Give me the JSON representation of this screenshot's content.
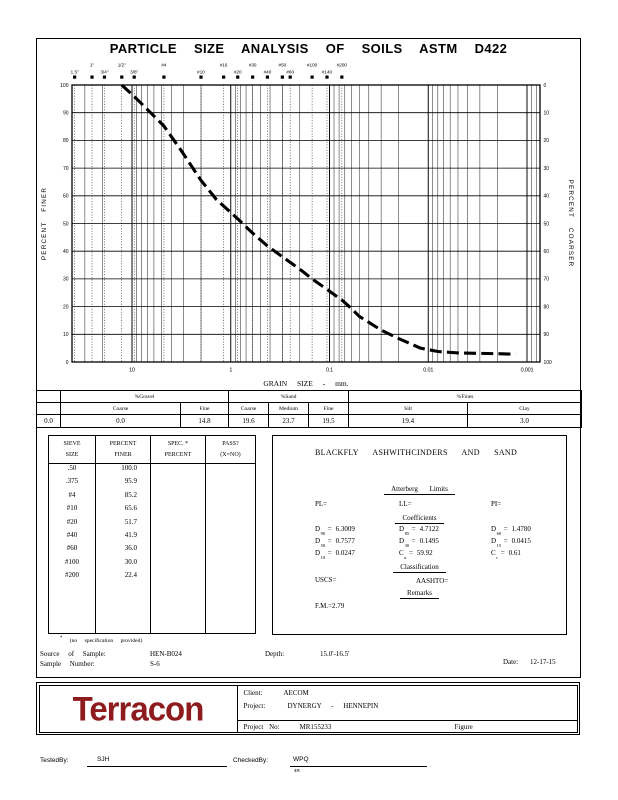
{
  "title": "PARTICLE SIZE ANALYSIS OF SOILS ASTM D422",
  "chart_data": {
    "type": "line",
    "xlabel": "GRAIN SIZE - mm.",
    "ylabel_left": "PERCENT FINER",
    "ylabel_right": "PERCENT COARSER",
    "x_scale": "log",
    "grid": true,
    "curve_style": "dashed",
    "ylim": [
      0,
      100
    ],
    "x_decades": [
      10,
      1,
      0.1,
      0.01,
      0.001
    ],
    "x_decade_labels": [
      "10",
      "1",
      "0.1",
      "0.01",
      "0.001"
    ],
    "x_range_mm": [
      40.5,
      0.00074
    ],
    "y_tick_labels": [
      "0",
      "10",
      "20",
      "30",
      "40",
      "50",
      "60",
      "70",
      "80",
      "90",
      "100"
    ],
    "sieve_markers": [
      {
        "label": "1.5\"",
        "mm": 38.1
      },
      {
        "label": "1\"",
        "mm": 25.4
      },
      {
        "label": "3/4\"",
        "mm": 19.0
      },
      {
        "label": "1/2\"",
        "mm": 12.7
      },
      {
        "label": "3/8\"",
        "mm": 9.5
      },
      {
        "label": "#4",
        "mm": 4.75
      },
      {
        "label": "#10",
        "mm": 2.0
      },
      {
        "label": "#16",
        "mm": 1.18
      },
      {
        "label": "#20",
        "mm": 0.85
      },
      {
        "label": "#30",
        "mm": 0.6
      },
      {
        "label": "#40",
        "mm": 0.425
      },
      {
        "label": "#50",
        "mm": 0.3
      },
      {
        "label": "#60",
        "mm": 0.25
      },
      {
        "label": "#100",
        "mm": 0.15
      },
      {
        "label": "#140",
        "mm": 0.106
      },
      {
        "label": "#200",
        "mm": 0.075
      }
    ],
    "curve_points_mm_pctfiner": [
      [
        12.7,
        100.0
      ],
      [
        9.5,
        95.9
      ],
      [
        6.7,
        90.5
      ],
      [
        4.75,
        85.2
      ],
      [
        3.2,
        76.5
      ],
      [
        2.0,
        65.6
      ],
      [
        1.4,
        58.7
      ],
      [
        0.85,
        51.7
      ],
      [
        0.6,
        46.5
      ],
      [
        0.425,
        41.9
      ],
      [
        0.32,
        38.7
      ],
      [
        0.25,
        36.0
      ],
      [
        0.19,
        32.9
      ],
      [
        0.15,
        30.0
      ],
      [
        0.105,
        26.1
      ],
      [
        0.075,
        22.4
      ],
      [
        0.06,
        19.3
      ],
      [
        0.05,
        16.5
      ],
      [
        0.03,
        11.5
      ],
      [
        0.02,
        8.5
      ],
      [
        0.012,
        5.0
      ],
      [
        0.008,
        3.8
      ],
      [
        0.005,
        3.3
      ],
      [
        0.002,
        3.0
      ],
      [
        0.0013,
        2.8
      ]
    ]
  },
  "fractions": {
    "col0_value": "0.0",
    "groups": [
      {
        "label": "%Gravel",
        "cols": [
          {
            "h": "Coarse",
            "v": "0.0"
          },
          {
            "h": "Fine",
            "v": "14.8"
          }
        ]
      },
      {
        "label": "%Sand",
        "cols": [
          {
            "h": "Coarse",
            "v": "19.6"
          },
          {
            "h": "Medium",
            "v": "23.7"
          },
          {
            "h": "Fine",
            "v": "19.5"
          }
        ]
      },
      {
        "label": "%Fines",
        "cols": [
          {
            "h": "Silt",
            "v": "19.4"
          },
          {
            "h": "Clay",
            "v": "3.0"
          }
        ]
      }
    ]
  },
  "sieve_table": {
    "col_headers": [
      [
        "SIEVE",
        "SIZE"
      ],
      [
        "PERCENT",
        "FINER"
      ],
      [
        "SPEC.  *",
        "PERCENT"
      ],
      [
        "PASS?",
        "(X=NO)"
      ]
    ],
    "rows": [
      [
        ".50",
        "100.0"
      ],
      [
        ".375",
        "95.9"
      ],
      [
        "#4",
        "85.2"
      ],
      [
        "#10",
        "65.6"
      ],
      [
        "#20",
        "51.7"
      ],
      [
        "#40",
        "41.9"
      ],
      [
        "#60",
        "36.0"
      ],
      [
        "#100",
        "30.0"
      ],
      [
        "#200",
        "22.4"
      ]
    ],
    "footnote_star": "*",
    "footnote": "(no specification provided)"
  },
  "summary": {
    "description": "BLACKFLY ASHWITHCINDERS AND SAND",
    "atterberg_heading": "Atterberg Limits",
    "pl_label": "PL=",
    "ll_label": "LL=",
    "pi_label": "PI=",
    "coefficients_heading": "Coefficients",
    "eq": "=",
    "coefficients": [
      {
        "base": "D",
        "sub": "90",
        "value": "6.3009"
      },
      {
        "base": "D",
        "sub": "85",
        "value": "4.7122"
      },
      {
        "base": "D",
        "sub": "60",
        "value": "1.4780"
      },
      {
        "base": "D",
        "sub": "50",
        "value": "0.7577"
      },
      {
        "base": "D",
        "sub": "30",
        "value": "0.1495"
      },
      {
        "base": "D",
        "sub": "15",
        "value": "0.0415"
      },
      {
        "base": "D",
        "sub": "10",
        "value": "0.0247"
      },
      {
        "base": "C",
        "sub": "u",
        "value": "59.92"
      },
      {
        "base": "C",
        "sub": "c",
        "value": "0.61"
      }
    ],
    "classification_heading": "Classification",
    "uscs_label": "USCS=",
    "aashto_label": "AASHTO=",
    "remarks_heading": "Remarks",
    "remarks_value": "F.M.=2.79"
  },
  "sample_info": {
    "source_label": "Source of Sample:",
    "source_value": "HEN-B024",
    "depth_label": "Depth:",
    "depth_value": "15.0'-16.5'",
    "number_label": "Sample Number:",
    "number_value": "S-6",
    "date_label": "Date:",
    "date_value": "12-17-15"
  },
  "footer": {
    "logo_text": "Terracon",
    "client_label": "Client:",
    "client_value": "AECOM",
    "project_label": "Project:",
    "project_value": "DYNERGY - HENNEPIN",
    "project_no_label": "Project No:",
    "project_no_value": "MR155233",
    "figure_label": "Figure"
  },
  "signatures": {
    "tested_label": "TestedBy:",
    "tested_value": "SJH",
    "checked_label": "CheckedBy:",
    "checked_value": "WPQ",
    "checked_note": "4R"
  },
  "colors": {
    "ink": "#000000",
    "paper": "#ffffff",
    "logo_red": "#8e1b1e"
  }
}
